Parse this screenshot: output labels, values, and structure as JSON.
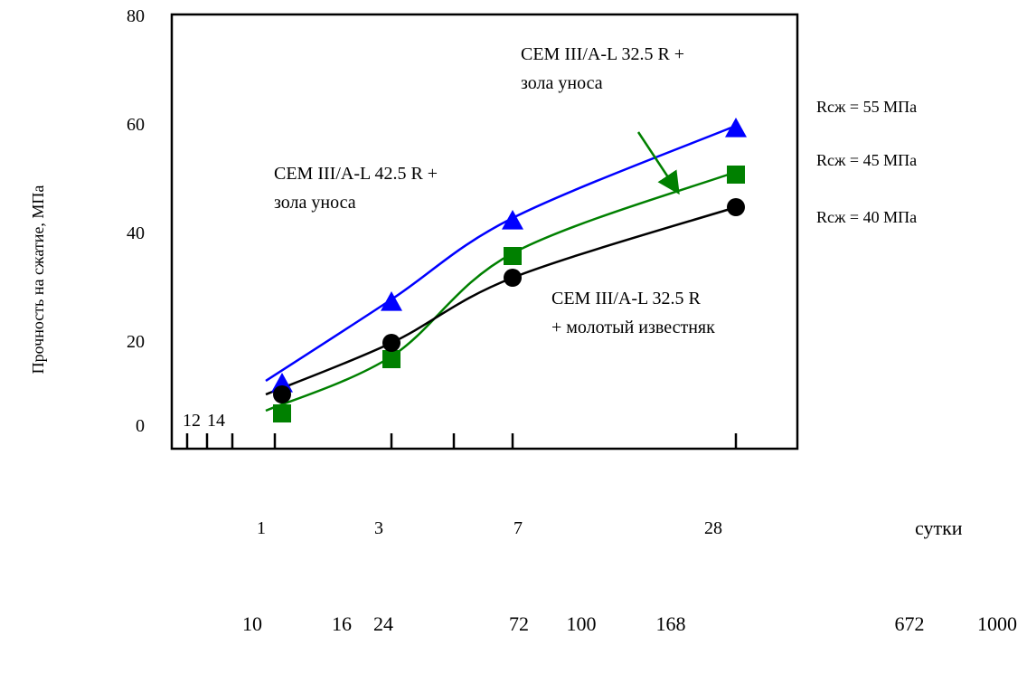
{
  "chart_data": {
    "type": "line",
    "ylabel": "Прочность на сжатие, МПа",
    "xlabel": "сутки",
    "ylim": [
      0,
      80
    ],
    "x_scale": "log",
    "grid": false,
    "yticks": [
      "0",
      "20",
      "40",
      "60",
      "80"
    ],
    "x_ticks_days": [
      "1",
      "3",
      "7",
      "28"
    ],
    "x_ticks_hours": [
      "10",
      "16",
      "24",
      "72",
      "100",
      "168",
      "672",
      "1000"
    ],
    "x_ticks_small": [
      "12",
      "14"
    ],
    "x_ticks_days_values": [
      1,
      3,
      7,
      28
    ],
    "series": [
      {
        "name": "CEM III/A-L 42.5 R + зола уноса",
        "name_lines": [
          "CEM III/A-L 42.5 R +",
          "зола уноса"
        ],
        "color": "#0000ff",
        "marker": "triangle",
        "x": [
          1,
          3,
          7,
          28
        ],
        "y": [
          12,
          27,
          42,
          59
        ]
      },
      {
        "name": "CEM III/A-L 32.5 R + зола уноса",
        "name_lines": [
          "CEM III/A-L 32.5 R +",
          "зола уноса"
        ],
        "color": "#008000",
        "marker": "square",
        "x": [
          1,
          3,
          7,
          28
        ],
        "y": [
          6.5,
          16.5,
          35.5,
          50.5
        ]
      },
      {
        "name": "CEM III/A-L 32.5 R + молотый известняк",
        "name_lines": [
          "CEM III/A-L 32.5 R",
          "+ молотый известняк"
        ],
        "color": "#000000",
        "marker": "circle",
        "x": [
          1,
          3,
          7,
          28
        ],
        "y": [
          10,
          19.5,
          31.5,
          44.5
        ]
      }
    ],
    "annotations": [
      "Rсж = 55 МПа",
      "Rсж = 45 МПа",
      "Rсж = 40 МПа"
    ]
  }
}
